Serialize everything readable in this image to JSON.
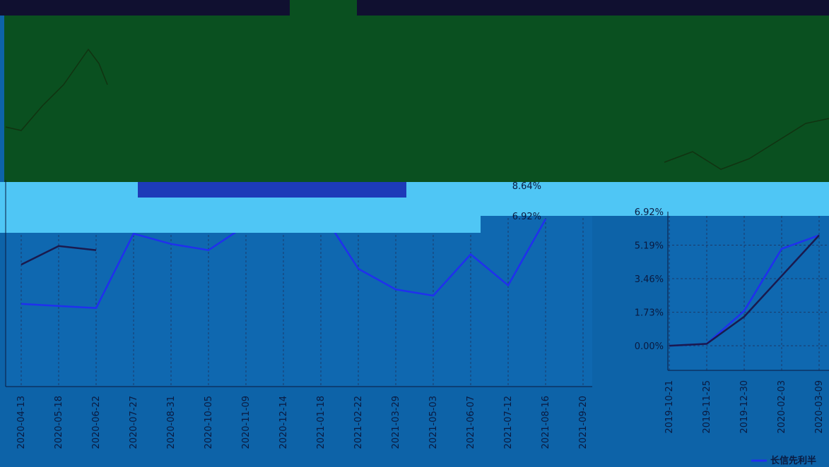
{
  "chart_data": [
    {
      "type": "line",
      "categories": [
        "2020-04-13",
        "2020-05-18",
        "2020-06-22",
        "2020-07-27",
        "2020-08-31",
        "2020-10-05",
        "2020-11-09",
        "2020-12-14",
        "2021-01-18",
        "2021-02-22",
        "2021-03-29",
        "2021-05-03",
        "2021-06-07",
        "2021-07-12",
        "2021-08-16",
        "2021-09-20"
      ],
      "series": [
        {
          "color": "#1a1a4e",
          "values": [
            5.9,
            6.8,
            6.6,
            null,
            null,
            null,
            null,
            null,
            null,
            null,
            null,
            null,
            null,
            null,
            null,
            null
          ]
        },
        {
          "color": "#2030ee",
          "values": [
            4.0,
            3.9,
            3.8,
            7.4,
            6.9,
            6.6,
            7.8,
            8.5,
            8.5,
            5.7,
            4.7,
            4.4,
            6.4,
            4.9,
            8.1,
            null
          ]
        }
      ],
      "ylim": [
        0,
        10
      ],
      "overlay_labels": [
        "8.64%",
        "6.92%"
      ],
      "grid": true
    },
    {
      "type": "line",
      "categories": [
        "2019-10-21",
        "2019-11-25",
        "2019-12-30",
        "2020-02-03",
        "2020-03-09"
      ],
      "series": [
        {
          "name": "长信先利半",
          "color": "#2030ee",
          "values": [
            0.0,
            0.1,
            1.8,
            5.0,
            5.7
          ]
        },
        {
          "color": "#1a1a4e",
          "values": [
            0.0,
            0.1,
            1.5,
            3.6,
            5.7
          ]
        }
      ],
      "ylim": [
        -1.27,
        6.92
      ],
      "yticks": [
        {
          "value": 0,
          "label": "0.00%"
        },
        {
          "value": 1.73,
          "label": "1.73%"
        },
        {
          "value": 3.46,
          "label": "3.46%"
        },
        {
          "value": 5.19,
          "label": "5.19%"
        },
        {
          "value": 6.92,
          "label": "6.92%"
        }
      ],
      "grid": true
    }
  ]
}
